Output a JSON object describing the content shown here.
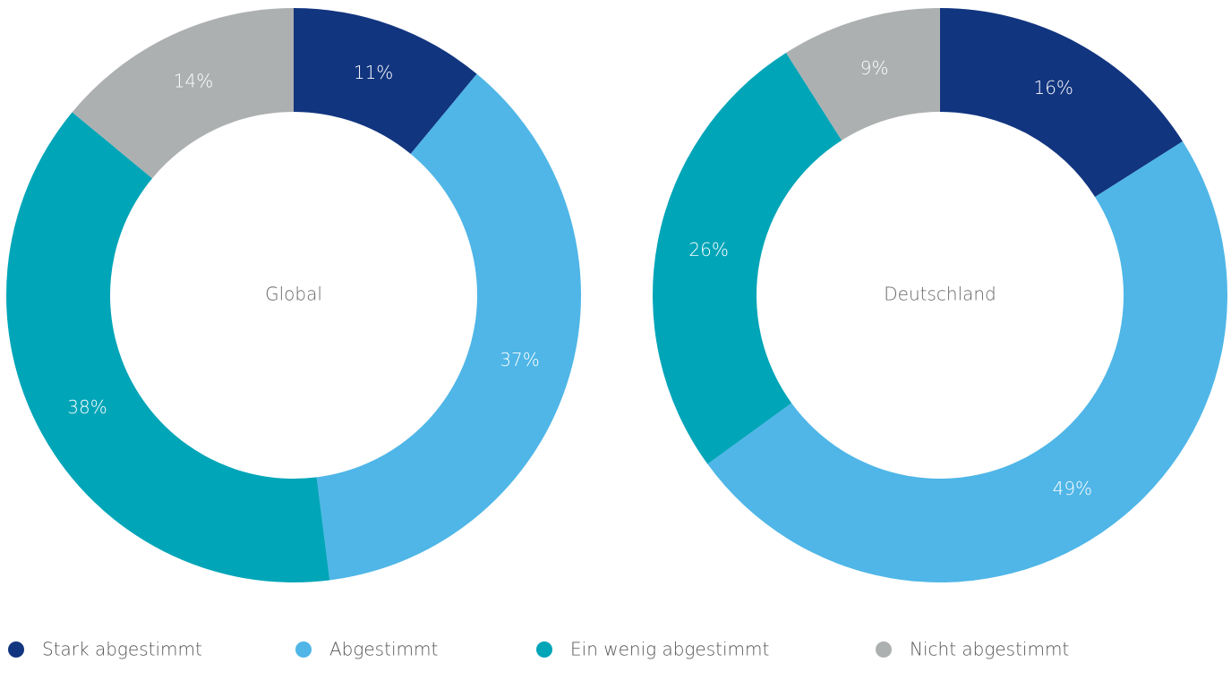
{
  "chart_data": [
    {
      "type": "pie",
      "title": "Global",
      "categories": [
        "Stark abgestimmt",
        "Abgestimmt",
        "Ein wenig abgestimmt",
        "Nicht abgestimmt"
      ],
      "values": [
        11,
        37,
        38,
        14
      ],
      "value_labels": [
        "11%",
        "37%",
        "38%",
        "14%"
      ],
      "colors": [
        "#12357f",
        "#4fb6e7",
        "#00a5b8",
        "#adb0b1"
      ]
    },
    {
      "type": "pie",
      "title": "Deutschland",
      "categories": [
        "Stark abgestimmt",
        "Abgestimmt",
        "Ein wenig abgestimmt",
        "Nicht abgestimmt"
      ],
      "values": [
        16,
        49,
        26,
        9
      ],
      "value_labels": [
        "16%",
        "49%",
        "26%",
        "9%"
      ],
      "colors": [
        "#12357f",
        "#4fb6e7",
        "#00a5b8",
        "#adb0b1"
      ]
    }
  ]
}
